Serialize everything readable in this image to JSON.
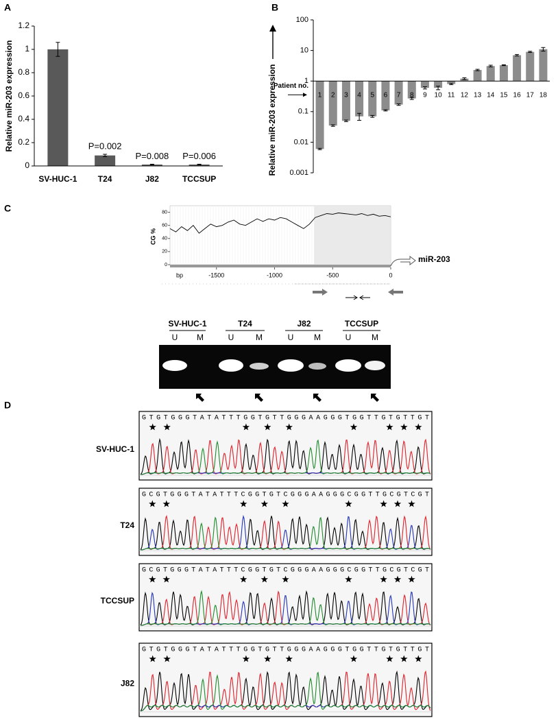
{
  "panels": [
    "A",
    "B",
    "C",
    "D"
  ],
  "chart_data": [
    {
      "type": "bar",
      "y_label": "Relative miR-203 expression",
      "categories": [
        "SV-HUC-1",
        "T24",
        "J82",
        "TCCSUP"
      ],
      "values": [
        1,
        0.09,
        0.012,
        0.012
      ],
      "errors": [
        0.06,
        0.01,
        0.003,
        0.003
      ],
      "annotations": [
        null,
        "P=0.002",
        "P=0.008",
        "P=0.006"
      ],
      "color": "#595959",
      "ylim": [
        0,
        1.2
      ],
      "yticks": [
        0,
        0.2,
        0.4,
        0.6,
        0.8,
        1,
        1.2
      ],
      "log_scale": false
    },
    {
      "type": "bar",
      "y_label": "Relative miR-203 expression",
      "x_label": "Patient no.",
      "categories": [
        "1",
        "2",
        "3",
        "4",
        "5",
        "6",
        "7",
        "8",
        "9",
        "10",
        "11",
        "12",
        "13",
        "14",
        "15",
        "16",
        "17",
        "18"
      ],
      "values": [
        0.006,
        0.035,
        0.05,
        0.07,
        0.07,
        0.11,
        0.17,
        0.27,
        0.6,
        0.6,
        0.8,
        1.2,
        2.3,
        3.1,
        3.3,
        7,
        9,
        11
      ],
      "errors": [
        0.0003,
        0.002,
        0.003,
        0.018,
        0.005,
        0.005,
        0.01,
        0.02,
        0.05,
        0.08,
        0.04,
        0.08,
        0.12,
        0.2,
        0.1,
        0.4,
        0.4,
        1.5
      ],
      "color": "#8c8c8c",
      "ylim": [
        0.001,
        100
      ],
      "yticks": [
        0.001,
        0.01,
        0.1,
        1,
        10,
        100
      ],
      "baseline": 1,
      "log_scale": true
    },
    {
      "type": "line",
      "y_label": "CG %",
      "x_label": "bp",
      "annotation": "miR-203",
      "x": [
        -1900,
        -1850,
        -1800,
        -1750,
        -1700,
        -1650,
        -1600,
        -1550,
        -1500,
        -1450,
        -1400,
        -1350,
        -1300,
        -1250,
        -1200,
        -1150,
        -1100,
        -1050,
        -1000,
        -950,
        -900,
        -850,
        -800,
        -750,
        -700,
        -650,
        -600,
        -550,
        -500,
        -450,
        -400,
        -350,
        -300,
        -250,
        -200,
        -150,
        -100,
        -50,
        0
      ],
      "values": [
        55,
        50,
        58,
        52,
        60,
        48,
        55,
        62,
        58,
        60,
        65,
        68,
        62,
        60,
        65,
        70,
        66,
        70,
        68,
        72,
        70,
        65,
        60,
        55,
        62,
        72,
        75,
        78,
        77,
        79,
        78,
        77,
        76,
        78,
        75,
        77,
        74,
        75,
        73
      ],
      "shaded_range": [
        -660,
        0
      ],
      "color": "#000000",
      "xlim": [
        -1900,
        0
      ],
      "xticks": [
        -1500,
        -1000,
        -500,
        0
      ],
      "ylim": [
        0,
        90
      ],
      "yticks": [
        0,
        20,
        40,
        60,
        80
      ]
    }
  ],
  "gel": {
    "samples": [
      {
        "name": "SV-HUC-1",
        "lanes": [
          "U",
          "M"
        ]
      },
      {
        "name": "T24",
        "lanes": [
          "U",
          "M"
        ]
      },
      {
        "name": "J82",
        "lanes": [
          "U",
          "M"
        ]
      },
      {
        "name": "TCCSUP",
        "lanes": [
          "U",
          "M"
        ]
      }
    ]
  },
  "sequencing": [
    {
      "name": "SV-HUC-1",
      "sequence": "GTGTGGGTATATTTGGTGTTGGGAAGGGTGGTTGTGTTGT"
    },
    {
      "name": "T24",
      "sequence": "GCGTGGGTATATTTCGGTGTCGGGAAGGGCGGTTGCGTCGT"
    },
    {
      "name": "TCCSUP",
      "sequence": "GCGTGGGTATATTTCGGTGTCGGGAAGGGCGGTTGCGTCGT"
    },
    {
      "name": "J82",
      "sequence": "GTGTGGGTATATTTGGTGTTGGGAAGGGTGGTTGTGTTGT"
    }
  ]
}
